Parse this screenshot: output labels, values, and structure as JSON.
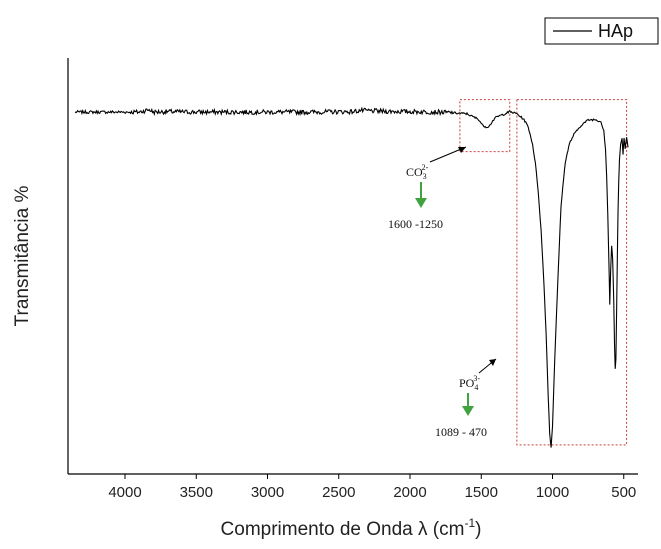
{
  "chart_data": {
    "type": "line",
    "xlabel_main": "Comprimento de Onda λ (cm",
    "xlabel_sup": "-1",
    "xlabel_end": ")",
    "ylabel": "Transmitância %",
    "xlim": [
      4400,
      400
    ],
    "x_ticks": [
      4000,
      3500,
      3000,
      2500,
      2000,
      1500,
      1000,
      500
    ],
    "ylim": [
      0,
      100
    ],
    "legend": {
      "position": "top-right",
      "label": "HAp"
    },
    "series": [
      {
        "name": "HAp",
        "color": "#000000",
        "x": [
          4350,
          4100,
          3900,
          3830,
          3800,
          3700,
          3500,
          3300,
          3000,
          2700,
          2400,
          2350,
          2200,
          2000,
          1800,
          1700,
          1600,
          1560,
          1520,
          1490,
          1460,
          1440,
          1420,
          1400,
          1380,
          1340,
          1300,
          1250,
          1200,
          1170,
          1140,
          1120,
          1100,
          1080,
          1060,
          1045,
          1030,
          1020,
          1010,
          1000,
          985,
          960,
          940,
          910,
          880,
          850,
          800,
          750,
          700,
          660,
          640,
          628,
          620,
          612,
          603,
          598,
          592,
          585,
          578,
          570,
          565,
          560,
          555,
          550,
          545,
          540,
          535,
          530,
          522,
          512,
          505,
          498,
          490,
          480,
          470
        ],
        "y": [
          87.0,
          87.0,
          87.0,
          87.6,
          87.0,
          87.1,
          87.0,
          87.0,
          87.0,
          87.0,
          87.1,
          87.4,
          87.2,
          87.1,
          87.0,
          86.8,
          86.6,
          85.9,
          85.3,
          83.8,
          83.4,
          83.8,
          84.9,
          85.6,
          86.0,
          86.5,
          87.1,
          86.6,
          85.2,
          83.4,
          79.3,
          74.6,
          67.9,
          58.5,
          45.7,
          33.9,
          18.7,
          9.9,
          6.4,
          11.5,
          26.9,
          48.6,
          64.6,
          75.1,
          79.5,
          81.6,
          83.8,
          85.1,
          85.2,
          84.7,
          82.6,
          78.1,
          71.6,
          62.3,
          49.2,
          40.5,
          49.0,
          54.9,
          51.6,
          41.6,
          31.7,
          25.3,
          27.5,
          39.4,
          52.0,
          63.6,
          70.8,
          75.5,
          79.1,
          80.7,
          77.0,
          80.9,
          78.3,
          81.0,
          78.5
        ]
      }
    ],
    "annotations": [
      {
        "label": "CO",
        "sub": "3",
        "sup": "2-",
        "range": "1600 -1250",
        "box_x": [
          1650,
          1300
        ]
      },
      {
        "label": "PO",
        "sub": "4",
        "sup": "3-",
        "range": "1089 - 470",
        "box_x": [
          1250,
          480
        ]
      }
    ]
  }
}
